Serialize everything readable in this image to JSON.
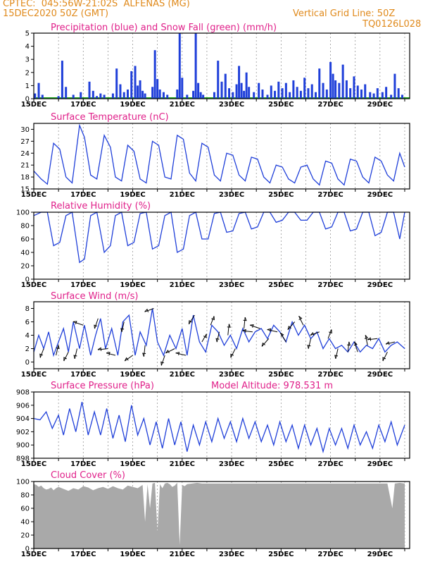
{
  "header": {
    "line1": "CPTEC:  045:56W-21:02S  ALFENAS (MG)",
    "line2": "15DEC2020 50Z (GMT)",
    "grid_note": "Vertical Grid Line: 50Z",
    "code": "TQ0126L028"
  },
  "colors": {
    "header": "#e08a1c",
    "title": "#e0208a",
    "line": "#1f3fd9",
    "snow": "#1fa81f",
    "cloud": "#a9a9a9",
    "grid": "#888888"
  },
  "chart_data": [
    {
      "id": "precip",
      "type": "bar",
      "title": "Precipitation (blue) and Snow Fall (green) (mm/h)",
      "ylim": [
        0,
        5
      ],
      "yticks": [
        0,
        1,
        2,
        3,
        4,
        5
      ],
      "x_start_day": 15,
      "days": 15.2,
      "xtick_labels": [
        "15DEC",
        "17DEC",
        "19DEC",
        "21DEC",
        "23DEC",
        "25DEC",
        "27DEC",
        "29DEC"
      ],
      "x": [
        15.05,
        15.2,
        15.35,
        16.0,
        16.15,
        16.3,
        16.6,
        16.9,
        17.25,
        17.4,
        17.55,
        17.7,
        17.85,
        18.2,
        18.35,
        18.5,
        18.65,
        18.8,
        18.95,
        19.1,
        19.2,
        19.3,
        19.4,
        19.5,
        19.8,
        19.9,
        20.0,
        20.1,
        20.25,
        20.4,
        20.8,
        20.9,
        21.0,
        21.2,
        21.45,
        21.55,
        21.65,
        21.75,
        21.85,
        22.3,
        22.45,
        22.6,
        22.75,
        22.9,
        23.05,
        23.2,
        23.3,
        23.4,
        23.5,
        23.6,
        23.7,
        23.9,
        24.1,
        24.25,
        24.45,
        24.6,
        24.75,
        24.9,
        25.05,
        25.2,
        25.35,
        25.5,
        25.65,
        25.8,
        25.95,
        26.1,
        26.25,
        26.4,
        26.55,
        26.7,
        26.85,
        27.0,
        27.1,
        27.2,
        27.35,
        27.5,
        27.65,
        27.8,
        27.95,
        28.1,
        28.25,
        28.4,
        28.6,
        28.75,
        28.9,
        29.1,
        29.25,
        29.45,
        29.6,
        29.75,
        29.9
      ],
      "values": [
        0.4,
        1.2,
        0.3,
        0.2,
        2.9,
        0.9,
        0.3,
        0.5,
        1.3,
        0.6,
        0.2,
        0.4,
        0.3,
        0.4,
        2.3,
        1.1,
        0.5,
        0.7,
        2.1,
        2.5,
        1.0,
        1.4,
        0.6,
        0.4,
        0.9,
        3.7,
        1.5,
        0.7,
        0.5,
        0.3,
        0.7,
        5.0,
        1.6,
        0.3,
        0.6,
        5.0,
        1.2,
        0.5,
        0.3,
        0.5,
        2.9,
        1.3,
        1.9,
        0.8,
        0.5,
        1.1,
        2.5,
        1.2,
        0.6,
        2.0,
        0.9,
        0.5,
        1.2,
        0.7,
        0.3,
        1.0,
        0.6,
        1.3,
        0.8,
        1.2,
        0.5,
        1.4,
        0.9,
        0.6,
        1.6,
        0.8,
        1.1,
        0.5,
        2.3,
        1.2,
        0.7,
        2.8,
        1.9,
        1.4,
        1.2,
        2.6,
        1.4,
        0.8,
        1.7,
        1.0,
        0.7,
        1.1,
        0.5,
        0.4,
        0.8,
        0.5,
        0.9,
        0.3,
        1.9,
        0.8,
        0.3
      ],
      "snow_values": 0
    },
    {
      "id": "temp",
      "type": "line",
      "title": "Surface Temperature (nC)",
      "ylim": [
        15,
        31.5
      ],
      "yticks": [
        15,
        18,
        21,
        24,
        27,
        30
      ],
      "x": [
        15.0,
        15.3,
        15.55,
        15.8,
        16.05,
        16.3,
        16.55,
        16.85,
        17.05,
        17.3,
        17.55,
        17.85,
        18.1,
        18.3,
        18.55,
        18.8,
        19.05,
        19.3,
        19.55,
        19.8,
        20.05,
        20.3,
        20.55,
        20.8,
        21.05,
        21.3,
        21.55,
        21.8,
        22.05,
        22.3,
        22.55,
        22.8,
        23.05,
        23.3,
        23.55,
        23.8,
        24.05,
        24.3,
        24.55,
        24.8,
        25.05,
        25.3,
        25.55,
        25.8,
        26.05,
        26.3,
        26.55,
        26.8,
        27.05,
        27.3,
        27.55,
        27.8,
        28.05,
        28.3,
        28.55,
        28.8,
        29.05,
        29.3,
        29.55,
        29.8,
        30.0
      ],
      "values": [
        19.5,
        17.5,
        16.2,
        26.5,
        25.0,
        18.0,
        16.5,
        31.0,
        28.0,
        18.5,
        17.5,
        28.5,
        25.5,
        18.0,
        17.0,
        26.0,
        24.5,
        17.5,
        16.5,
        27.0,
        26.0,
        18.0,
        17.5,
        28.5,
        27.5,
        19.0,
        17.0,
        26.5,
        25.5,
        18.5,
        17.0,
        24.0,
        23.5,
        18.5,
        17.0,
        23.0,
        22.5,
        18.0,
        16.5,
        21.0,
        20.5,
        17.5,
        16.5,
        20.5,
        21.0,
        17.5,
        16.0,
        22.0,
        21.5,
        17.5,
        16.0,
        22.5,
        22.0,
        18.0,
        16.5,
        23.0,
        22.0,
        18.5,
        17.0,
        24.0,
        20.5
      ]
    },
    {
      "id": "rh",
      "type": "line",
      "title": "Relative Humidity (%)",
      "ylim": [
        0,
        100
      ],
      "yticks": [
        0,
        20,
        40,
        60,
        80,
        100
      ],
      "x": [
        15.0,
        15.3,
        15.55,
        15.8,
        16.05,
        16.3,
        16.55,
        16.85,
        17.05,
        17.3,
        17.55,
        17.85,
        18.1,
        18.3,
        18.55,
        18.8,
        19.05,
        19.3,
        19.55,
        19.8,
        20.05,
        20.3,
        20.55,
        20.8,
        21.05,
        21.3,
        21.55,
        21.8,
        22.05,
        22.3,
        22.55,
        22.8,
        23.05,
        23.3,
        23.55,
        23.8,
        24.05,
        24.3,
        24.55,
        24.8,
        25.05,
        25.3,
        25.55,
        25.8,
        26.05,
        26.3,
        26.55,
        26.8,
        27.05,
        27.3,
        27.55,
        27.8,
        28.05,
        28.3,
        28.55,
        28.8,
        29.05,
        29.3,
        29.55,
        29.8,
        30.0
      ],
      "values": [
        95,
        100,
        100,
        50,
        55,
        95,
        100,
        25,
        30,
        95,
        100,
        40,
        50,
        95,
        100,
        50,
        55,
        98,
        100,
        45,
        50,
        95,
        100,
        40,
        45,
        95,
        100,
        60,
        60,
        98,
        100,
        70,
        72,
        98,
        100,
        75,
        78,
        100,
        100,
        85,
        88,
        100,
        100,
        88,
        88,
        100,
        100,
        75,
        78,
        100,
        100,
        72,
        75,
        100,
        100,
        65,
        70,
        100,
        100,
        60,
        100
      ]
    },
    {
      "id": "wind",
      "type": "line",
      "title": "Surface Wind (m/s)",
      "ylim": [
        -1,
        9
      ],
      "yticks": [
        0,
        2,
        4,
        6,
        8
      ],
      "x": [
        15.0,
        15.2,
        15.4,
        15.6,
        15.8,
        16.0,
        16.2,
        16.4,
        16.6,
        16.85,
        17.05,
        17.3,
        17.5,
        17.7,
        17.9,
        18.15,
        18.4,
        18.6,
        18.85,
        19.1,
        19.3,
        19.55,
        19.8,
        20.0,
        20.25,
        20.5,
        20.75,
        21.0,
        21.2,
        21.45,
        21.7,
        21.95,
        22.2,
        22.45,
        22.7,
        22.95,
        23.2,
        23.45,
        23.7,
        23.95,
        24.2,
        24.45,
        24.7,
        24.95,
        25.2,
        25.45,
        25.7,
        25.95,
        26.2,
        26.45,
        26.7,
        26.95,
        27.2,
        27.45,
        27.7,
        27.95,
        28.2,
        28.45,
        28.7,
        28.95,
        29.2,
        29.45,
        29.7,
        30.0
      ],
      "values": [
        1.5,
        4.0,
        2.0,
        4.5,
        1.0,
        3.0,
        5.0,
        1.5,
        6.0,
        2.0,
        5.5,
        1.0,
        4.0,
        6.5,
        2.0,
        5.0,
        1.0,
        6.0,
        7.0,
        1.0,
        4.5,
        2.5,
        8.0,
        3.0,
        1.0,
        4.0,
        2.0,
        5.0,
        1.0,
        7.0,
        3.0,
        1.5,
        5.5,
        4.5,
        2.5,
        4.0,
        2.0,
        5.0,
        3.0,
        4.5,
        5.0,
        3.5,
        5.5,
        4.5,
        3.0,
        6.0,
        4.0,
        5.5,
        3.5,
        4.5,
        2.0,
        3.5,
        2.0,
        2.5,
        1.5,
        3.0,
        1.5,
        2.5,
        2.0,
        3.5,
        1.5,
        2.5,
        3.0,
        2.0
      ],
      "arrows": [
        {
          "x": 15.4,
          "u": -0.3,
          "v": -0.8
        },
        {
          "x": 15.9,
          "u": 0.2,
          "v": 0.9
        },
        {
          "x": 16.4,
          "u": -0.4,
          "v": -0.8
        },
        {
          "x": 16.75,
          "u": -0.2,
          "v": -0.9
        },
        {
          "x": 17.0,
          "u": -0.9,
          "v": 0.3
        },
        {
          "x": 17.6,
          "u": -0.3,
          "v": -0.9
        },
        {
          "x": 18.0,
          "u": -0.9,
          "v": -0.1
        },
        {
          "x": 18.3,
          "u": -0.8,
          "v": 0.2
        },
        {
          "x": 18.65,
          "u": -0.2,
          "v": -0.9
        },
        {
          "x": 19.0,
          "u": -0.7,
          "v": -0.5
        },
        {
          "x": 19.5,
          "u": -0.1,
          "v": -1.0
        },
        {
          "x": 19.85,
          "u": -0.8,
          "v": -0.3
        },
        {
          "x": 20.3,
          "u": -0.3,
          "v": -0.9
        },
        {
          "x": 20.7,
          "u": -0.8,
          "v": -0.4
        },
        {
          "x": 21.15,
          "u": -0.9,
          "v": 0.2
        },
        {
          "x": 21.5,
          "u": -0.5,
          "v": -0.8
        },
        {
          "x": 21.8,
          "u": 0.4,
          "v": 0.7
        },
        {
          "x": 22.15,
          "u": 0.3,
          "v": 0.8
        },
        {
          "x": 22.5,
          "u": -0.2,
          "v": -0.9
        },
        {
          "x": 22.85,
          "u": 0.1,
          "v": 1.0
        },
        {
          "x": 23.15,
          "u": -0.4,
          "v": -0.8
        },
        {
          "x": 23.5,
          "u": 0.1,
          "v": 1.0
        },
        {
          "x": 23.85,
          "u": -0.9,
          "v": 0.1
        },
        {
          "x": 24.15,
          "u": -0.9,
          "v": 0.3
        },
        {
          "x": 24.5,
          "u": -0.6,
          "v": -0.7
        },
        {
          "x": 24.85,
          "u": -0.9,
          "v": 0.2
        },
        {
          "x": 25.2,
          "u": -0.5,
          "v": 0.8
        },
        {
          "x": 25.55,
          "u": -0.6,
          "v": -0.7
        },
        {
          "x": 25.9,
          "u": -0.4,
          "v": 0.8
        },
        {
          "x": 26.2,
          "u": -0.2,
          "v": -0.9
        },
        {
          "x": 26.55,
          "u": -0.8,
          "v": -0.3
        },
        {
          "x": 26.9,
          "u": 0.3,
          "v": 0.8
        },
        {
          "x": 27.3,
          "u": -0.2,
          "v": -0.9
        },
        {
          "x": 27.7,
          "u": 0.1,
          "v": 0.9
        },
        {
          "x": 28.1,
          "u": -0.3,
          "v": 0.9
        },
        {
          "x": 28.5,
          "u": -0.2,
          "v": 0.9
        },
        {
          "x": 28.9,
          "u": -0.9,
          "v": -0.1
        },
        {
          "x": 29.3,
          "u": -0.4,
          "v": -0.8
        },
        {
          "x": 29.6,
          "u": -0.8,
          "v": -0.2
        }
      ]
    },
    {
      "id": "pressure",
      "type": "line",
      "title": "Surface Pressure (hPa)",
      "annotation": "Model Altitude: 978.531  m",
      "ylim": [
        898,
        908
      ],
      "yticks": [
        898,
        900,
        902,
        904,
        906,
        908
      ],
      "x": [
        15.0,
        15.25,
        15.5,
        15.75,
        16.0,
        16.2,
        16.45,
        16.7,
        16.95,
        17.2,
        17.45,
        17.7,
        17.95,
        18.2,
        18.45,
        18.7,
        18.95,
        19.2,
        19.45,
        19.7,
        19.95,
        20.2,
        20.45,
        20.7,
        20.95,
        21.2,
        21.45,
        21.7,
        21.95,
        22.2,
        22.45,
        22.7,
        22.95,
        23.2,
        23.45,
        23.7,
        23.95,
        24.2,
        24.45,
        24.7,
        24.95,
        25.2,
        25.45,
        25.7,
        25.95,
        26.2,
        26.45,
        26.7,
        26.95,
        27.2,
        27.45,
        27.7,
        27.95,
        28.2,
        28.45,
        28.7,
        28.95,
        29.2,
        29.45,
        29.7,
        30.0
      ],
      "values": [
        904,
        903.8,
        905,
        902.5,
        904.5,
        901.5,
        905.5,
        902,
        906.5,
        901.5,
        905,
        901.5,
        905.5,
        901,
        904.5,
        900.5,
        906,
        901.5,
        904,
        900,
        903.5,
        899.5,
        904,
        900,
        903.5,
        899,
        903,
        900,
        903.5,
        900.5,
        904,
        901,
        903.5,
        900.5,
        904,
        901,
        903.5,
        900.5,
        903,
        900,
        903.5,
        900.5,
        903,
        899.5,
        903,
        900,
        902.5,
        899,
        902.5,
        900,
        902.5,
        899.5,
        903,
        900,
        902,
        899.5,
        903,
        900.5,
        903.5,
        900,
        903
      ]
    },
    {
      "id": "cloud",
      "type": "area",
      "title": "Cloud Cover (%)",
      "ylim": [
        0,
        100
      ],
      "yticks": [
        0,
        20,
        40,
        60,
        80,
        100
      ],
      "x": [
        15.0,
        15.1,
        15.2,
        15.3,
        15.4,
        15.5,
        15.6,
        15.7,
        15.8,
        15.9,
        16.0,
        16.2,
        16.4,
        16.6,
        16.8,
        17.0,
        17.2,
        17.4,
        17.6,
        17.8,
        18.0,
        18.2,
        18.4,
        18.6,
        18.8,
        19.0,
        19.2,
        19.4,
        19.5,
        19.6,
        19.7,
        19.8,
        19.9,
        20.0,
        20.1,
        20.2,
        20.3,
        20.4,
        20.5,
        20.6,
        20.7,
        20.8,
        20.9,
        21.0,
        21.1,
        21.2,
        21.4,
        21.6,
        21.8,
        22.0,
        22.3,
        22.6,
        23.0,
        23.5,
        24.0,
        24.5,
        25.0,
        25.5,
        26.0,
        26.5,
        27.0,
        27.5,
        28.0,
        28.5,
        29.0,
        29.3,
        29.5,
        29.6,
        29.8,
        30.0
      ],
      "values": [
        96,
        95,
        92,
        94,
        90,
        88,
        89,
        91,
        87,
        90,
        92,
        89,
        86,
        90,
        88,
        93,
        91,
        87,
        90,
        92,
        89,
        93,
        90,
        88,
        94,
        92,
        90,
        95,
        40,
        96,
        60,
        97,
        98,
        25,
        96,
        90,
        97,
        98,
        96,
        92,
        94,
        98,
        5,
        95,
        93,
        96,
        97,
        98,
        97,
        97,
        97,
        97,
        97,
        97,
        97,
        97,
        97,
        97,
        97,
        97,
        97,
        97,
        97,
        97,
        97,
        97,
        60,
        97,
        98,
        97
      ]
    }
  ]
}
